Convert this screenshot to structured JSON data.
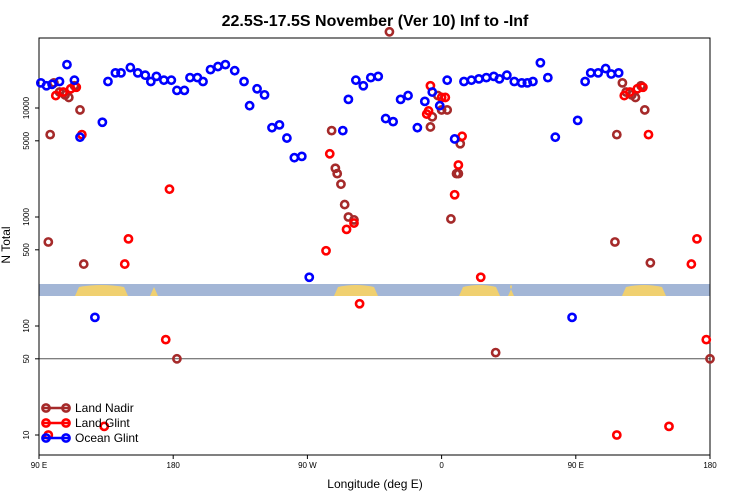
{
  "chart_data": {
    "type": "scatter",
    "title": "22.5S-17.5S November (Ver 10)   Inf to -Inf",
    "xlabel": "Longitude (deg E)",
    "ylabel": "N Total",
    "xlim": [
      90,
      450
    ],
    "ylim": [
      5,
      50000
    ],
    "yscale": "log",
    "x_ticks": [
      90,
      162,
      234,
      306,
      378,
      450
    ],
    "x_tick_labels": [
      "90 E",
      "180",
      "90 W",
      "0",
      "90 E",
      "180"
    ],
    "y_ticks": [
      10,
      50,
      100,
      500,
      1000,
      5000,
      10000
    ],
    "y_tick_labels": [
      "10",
      "50",
      "100",
      "500",
      "1000",
      "5000",
      "10000"
    ],
    "reference_line": 50,
    "colors": {
      "land_nadir": "#a52a2a",
      "land_glint": "#ff0000",
      "ocean_glint": "#0000ff",
      "map_ocean": "#a3b6d6",
      "map_land": "#f0d070"
    },
    "series": [
      {
        "name": "Land Nadir",
        "points": [
          [
            95,
            590
          ],
          [
            96,
            5700
          ],
          [
            98,
            17000
          ],
          [
            101,
            14000
          ],
          [
            104,
            13200
          ],
          [
            106,
            12500
          ],
          [
            109,
            16000
          ],
          [
            112,
            9600
          ],
          [
            114,
            370
          ],
          [
            164,
            50
          ],
          [
            247,
            6200
          ],
          [
            249,
            2800
          ],
          [
            250,
            2500
          ],
          [
            252,
            2000
          ],
          [
            254,
            1300
          ],
          [
            256,
            1000
          ],
          [
            259,
            940
          ],
          [
            278,
            50000
          ],
          [
            300,
            6700
          ],
          [
            301,
            8300
          ],
          [
            304,
            13000
          ],
          [
            306,
            9600
          ],
          [
            309,
            9600
          ],
          [
            311,
            960
          ],
          [
            314,
            2500
          ],
          [
            315,
            2500
          ],
          [
            316,
            4700
          ],
          [
            335,
            57
          ],
          [
            399,
            590
          ],
          [
            400,
            5700
          ],
          [
            403,
            17000
          ],
          [
            405,
            14000
          ],
          [
            408,
            13200
          ],
          [
            410,
            12500
          ],
          [
            413,
            16000
          ],
          [
            415,
            9600
          ],
          [
            418,
            380
          ],
          [
            450,
            50
          ]
        ]
      },
      {
        "name": "Land Glint",
        "points": [
          [
            95,
            10
          ],
          [
            99,
            13000
          ],
          [
            103,
            14000
          ],
          [
            107,
            15000
          ],
          [
            110,
            15500
          ],
          [
            113,
            5700
          ],
          [
            125,
            12
          ],
          [
            136,
            370
          ],
          [
            138,
            630
          ],
          [
            158,
            75
          ],
          [
            160,
            1800
          ],
          [
            244,
            490
          ],
          [
            246,
            3800
          ],
          [
            255,
            770
          ],
          [
            259,
            880
          ],
          [
            262,
            160
          ],
          [
            298,
            8800
          ],
          [
            299,
            9400
          ],
          [
            300,
            16000
          ],
          [
            306,
            12500
          ],
          [
            308,
            12500
          ],
          [
            313,
            1600
          ],
          [
            315,
            3000
          ],
          [
            317,
            5500
          ],
          [
            327,
            280
          ],
          [
            400,
            10
          ],
          [
            404,
            13000
          ],
          [
            407,
            14000
          ],
          [
            411,
            15000
          ],
          [
            414,
            15500
          ],
          [
            417,
            5700
          ],
          [
            428,
            12
          ],
          [
            440,
            370
          ],
          [
            443,
            630
          ],
          [
            448,
            75
          ]
        ]
      },
      {
        "name": "Ocean Glint",
        "points": [
          [
            91,
            17000
          ],
          [
            94,
            16000
          ],
          [
            97,
            16500
          ],
          [
            101,
            17500
          ],
          [
            105,
            25000
          ],
          [
            109,
            18000
          ],
          [
            112,
            5400
          ],
          [
            120,
            120
          ],
          [
            124,
            7400
          ],
          [
            127,
            17500
          ],
          [
            131,
            21000
          ],
          [
            134,
            21000
          ],
          [
            139,
            23500
          ],
          [
            143,
            21000
          ],
          [
            147,
            20000
          ],
          [
            150,
            17500
          ],
          [
            153,
            19500
          ],
          [
            157,
            18000
          ],
          [
            161,
            18000
          ],
          [
            164,
            14500
          ],
          [
            168,
            14500
          ],
          [
            171,
            19000
          ],
          [
            175,
            19000
          ],
          [
            178,
            17500
          ],
          [
            182,
            22500
          ],
          [
            186,
            24000
          ],
          [
            190,
            25000
          ],
          [
            195,
            22000
          ],
          [
            200,
            17500
          ],
          [
            203,
            10500
          ],
          [
            207,
            15000
          ],
          [
            211,
            13200
          ],
          [
            215,
            6600
          ],
          [
            219,
            7000
          ],
          [
            223,
            5300
          ],
          [
            227,
            3500
          ],
          [
            231,
            3600
          ],
          [
            235,
            280
          ],
          [
            253,
            6200
          ],
          [
            256,
            12000
          ],
          [
            260,
            18000
          ],
          [
            264,
            16000
          ],
          [
            268,
            19000
          ],
          [
            272,
            19500
          ],
          [
            276,
            8000
          ],
          [
            280,
            7500
          ],
          [
            284,
            12000
          ],
          [
            288,
            13000
          ],
          [
            293,
            6600
          ],
          [
            297,
            11500
          ],
          [
            301,
            14000
          ],
          [
            305,
            10500
          ],
          [
            309,
            18000
          ],
          [
            313,
            5200
          ],
          [
            318,
            17500
          ],
          [
            322,
            18000
          ],
          [
            326,
            18500
          ],
          [
            330,
            19000
          ],
          [
            334,
            19500
          ],
          [
            337,
            18500
          ],
          [
            341,
            20000
          ],
          [
            345,
            17500
          ],
          [
            349,
            17000
          ],
          [
            352,
            17000
          ],
          [
            355,
            17500
          ],
          [
            359,
            26000
          ],
          [
            363,
            19000
          ],
          [
            367,
            5400
          ],
          [
            376,
            120
          ],
          [
            379,
            7700
          ],
          [
            383,
            17500
          ],
          [
            386,
            21000
          ],
          [
            390,
            21000
          ],
          [
            394,
            23000
          ],
          [
            397,
            20500
          ],
          [
            401,
            21000
          ]
        ]
      }
    ],
    "map_segments": [
      {
        "from": 90,
        "to": 107,
        "fill": "land_nadir_bg"
      }
    ],
    "legend": {
      "position": "bottom-left",
      "entries": [
        "Land Nadir",
        "Land Glint",
        "Ocean Glint"
      ]
    }
  }
}
